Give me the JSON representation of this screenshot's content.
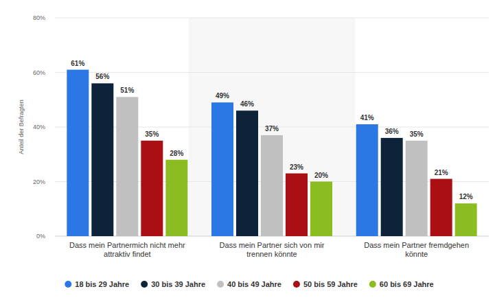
{
  "chart_data": {
    "type": "bar",
    "y_label": "Anteil der Befragten",
    "categories": [
      "Dass mein Partnermich nicht mehr attraktiv findet",
      "Dass mein Partner sich von mir trennen könnte",
      "Dass mein Partner fremdgehen könnte"
    ],
    "series": [
      {
        "name": "18 bis 29 Jahre",
        "color": "#2b78e4",
        "values": [
          61,
          49,
          41
        ],
        "value_labels": [
          "61%",
          "49%",
          "41%"
        ]
      },
      {
        "name": "30 bis 39 Jahre",
        "color": "#0d233a",
        "values": [
          56,
          46,
          36
        ],
        "value_labels": [
          "56%",
          "46%",
          "36%"
        ]
      },
      {
        "name": "40 bis 49 Jahre",
        "color": "#c0c0c0",
        "values": [
          51,
          37,
          35
        ],
        "value_labels": [
          "51%",
          "37%",
          "35%"
        ]
      },
      {
        "name": "50 bis 59 Jahre",
        "color": "#a90f13",
        "values": [
          35,
          23,
          21
        ],
        "value_labels": [
          "35%",
          "23%",
          "21%"
        ]
      },
      {
        "name": "60 bis 69 Jahre",
        "color": "#8bbc21",
        "values": [
          28,
          20,
          12
        ],
        "value_labels": [
          "28%",
          "20%",
          "12%"
        ]
      }
    ],
    "ylim": [
      0,
      80
    ],
    "yticks": [
      {
        "value": 0,
        "label": "0%"
      },
      {
        "value": 20,
        "label": "20%"
      },
      {
        "value": 40,
        "label": "40%"
      },
      {
        "value": 60,
        "label": "60%"
      },
      {
        "value": 80,
        "label": "80%"
      }
    ],
    "grid": true,
    "legend": "bottom",
    "data_labels": true
  }
}
